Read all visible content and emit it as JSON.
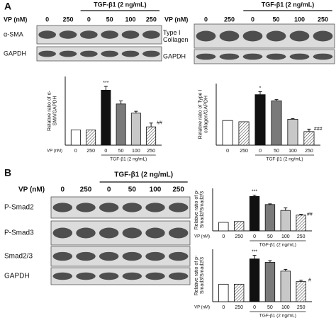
{
  "panels": {
    "a": "A",
    "b": "B"
  },
  "blots": [
    {
      "dose_label": "VP (nM)",
      "lanes": [
        "0",
        "250",
        "0",
        "50",
        "100",
        "250"
      ],
      "treatment": "TGF-β1 (2 ng/mL)",
      "rows": [
        "α-SMA",
        "GAPDH"
      ]
    },
    {
      "dose_label": "VP (nM)",
      "lanes": [
        "0",
        "250",
        "0",
        "50",
        "100",
        "250"
      ],
      "treatment": "TGF-β1 (2 ng/mL)",
      "rows": [
        "Type I Collagen",
        "GAPDH"
      ]
    },
    {
      "dose_label": "VP (nM)",
      "lanes": [
        "0",
        "250",
        "0",
        "50",
        "100",
        "250"
      ],
      "treatment": "TGF-β1 (2 ng/mL)",
      "rows": [
        "P-Smad2",
        "P-Smad3",
        "Smad2/3",
        "GAPDH"
      ]
    }
  ],
  "chart_data": [
    {
      "type": "bar",
      "ylabel": "Relative ratio of α-SMA/GAPDH",
      "x_row_label": "VP (nM)",
      "x_group_label": "TGF-β1 (2 ng/mL)",
      "categories": [
        "0",
        "250",
        "0",
        "50",
        "100",
        "250"
      ],
      "values": [
        1,
        1,
        3.6,
        2.7,
        2.1,
        1.2
      ],
      "errors": [
        0,
        0,
        0.25,
        0.2,
        0.12,
        0.25
      ],
      "colors": [
        "#ffffff",
        "#ffffff",
        "#111111",
        "#7a7a7a",
        "#c8c8c8",
        "#ffffff"
      ],
      "hatched": [
        false,
        true,
        false,
        false,
        false,
        true
      ],
      "annotations": [
        null,
        null,
        "***",
        null,
        null,
        "##"
      ],
      "ylim": [
        0,
        4.5
      ]
    },
    {
      "type": "bar",
      "ylabel": "Relative ratio of Type I collagen/GAPDH",
      "x_group_label": "TGF-β1 (2 ng/mL)",
      "categories": [
        "0",
        "250",
        "0",
        "50",
        "100",
        "250"
      ],
      "values": [
        1,
        0.95,
        2.05,
        1.8,
        1.05,
        0.55
      ],
      "errors": [
        0,
        0,
        0.12,
        0.05,
        0.03,
        0.1
      ],
      "colors": [
        "#ffffff",
        "#ffffff",
        "#111111",
        "#7a7a7a",
        "#c8c8c8",
        "#ffffff"
      ],
      "hatched": [
        false,
        true,
        false,
        false,
        false,
        true
      ],
      "annotations": [
        null,
        null,
        "*",
        null,
        null,
        "###"
      ],
      "ylim": [
        0,
        2.5
      ]
    },
    {
      "type": "bar",
      "ylabel": "Relative ratio of p-Smad2/Smad2/3",
      "x_row_label": "VP (nM)",
      "x_group_label": "TGF-β1 (2 ng/mL)",
      "categories": [
        "0",
        "250",
        "0",
        "50",
        "100",
        "250"
      ],
      "values": [
        1,
        1.1,
        4.05,
        3.1,
        2.4,
        1.85
      ],
      "errors": [
        0,
        0,
        0.15,
        0.08,
        0.3,
        0.1
      ],
      "colors": [
        "#ffffff",
        "#ffffff",
        "#111111",
        "#7a7a7a",
        "#c8c8c8",
        "#ffffff"
      ],
      "hatched": [
        false,
        true,
        false,
        false,
        false,
        true
      ],
      "annotations": [
        null,
        null,
        "***",
        null,
        null,
        "##"
      ],
      "ylim": [
        0,
        5
      ]
    },
    {
      "type": "bar",
      "ylabel": "Relative ratio of p-Smad3/Smad2/3",
      "x_row_label": "VP (nM)",
      "x_group_label": "TGF-β1 (2 ng/mL)",
      "categories": [
        "0",
        "250",
        "0",
        "50",
        "100",
        "250"
      ],
      "values": [
        1,
        1,
        2.45,
        2.25,
        1.75,
        1.15
      ],
      "errors": [
        0,
        0,
        0.2,
        0.1,
        0.1,
        0.08
      ],
      "colors": [
        "#ffffff",
        "#ffffff",
        "#111111",
        "#7a7a7a",
        "#c8c8c8",
        "#ffffff"
      ],
      "hatched": [
        false,
        true,
        false,
        false,
        false,
        true
      ],
      "annotations": [
        null,
        null,
        "***",
        null,
        null,
        "#"
      ],
      "ylim": [
        0,
        3
      ]
    }
  ]
}
